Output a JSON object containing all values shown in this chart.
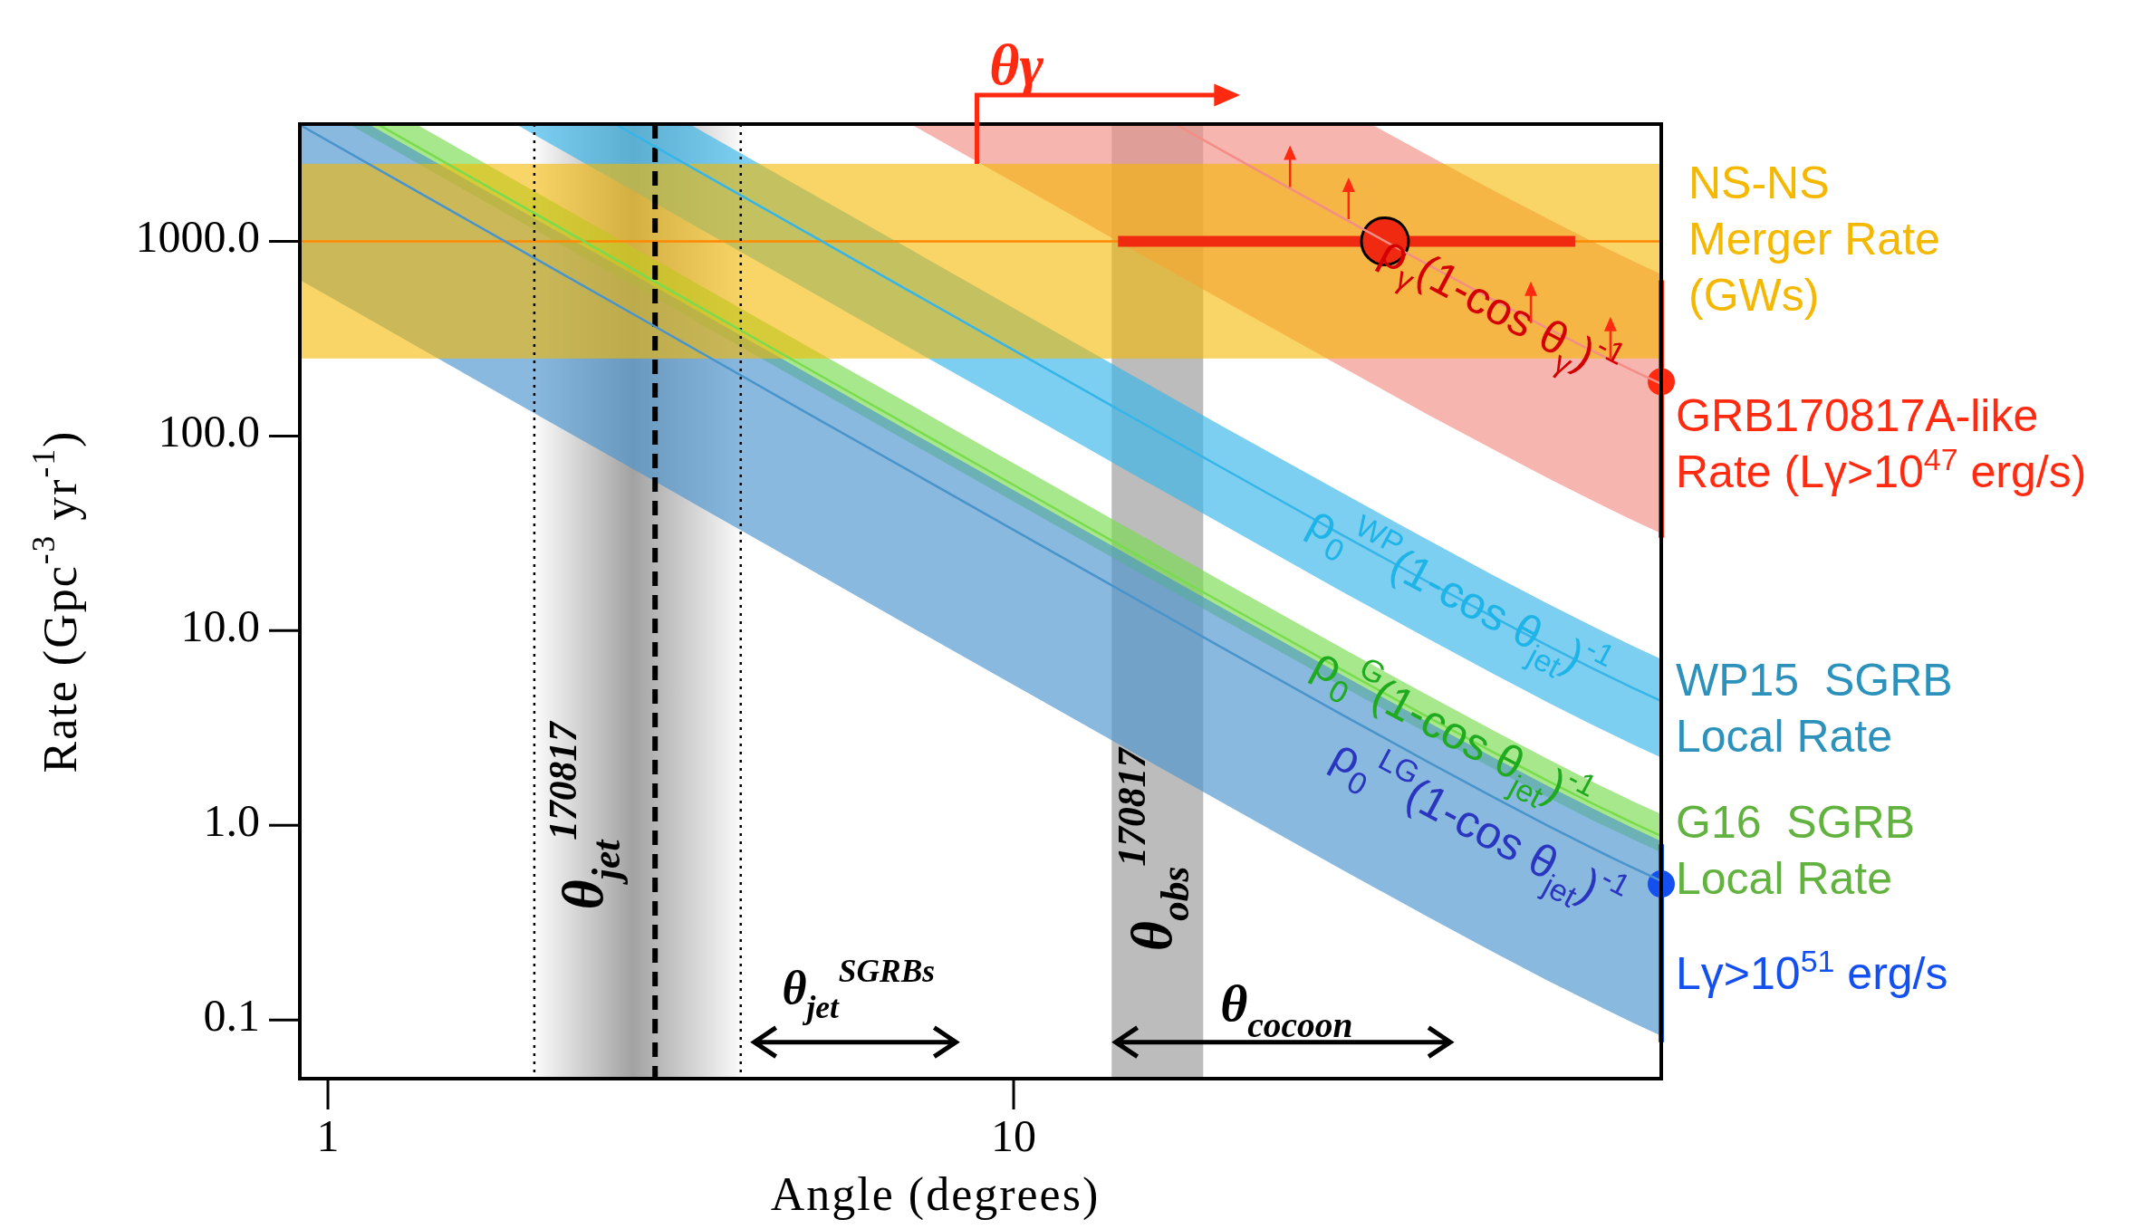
{
  "chart_data": {
    "type": "line",
    "log": "xy",
    "xlabel": "Angle (degrees)",
    "ylabel": "Rate (Gpc$^{-3}$ yr$^{-1}$)",
    "xlim": [
      0.91,
      88
    ],
    "ylim": [
      0.05,
      4000
    ],
    "xticks": [
      1,
      10
    ],
    "yticks": [
      {
        "value": 0.1,
        "label": "0.1"
      },
      {
        "value": 1,
        "label": "1.0"
      },
      {
        "value": 10,
        "label": "10.0"
      },
      {
        "value": 100,
        "label": "100.0"
      },
      {
        "value": 1000,
        "label": "1000.0"
      }
    ],
    "series": [
      {
        "color": "#f38d86",
        "x": [
          7.08,
          10,
          15,
          17.2,
          20,
          30,
          33.22,
          40,
          50,
          60,
          70,
          80,
          88
        ],
        "values": [
          null,
          null,
          null,
          4000,
          2968,
          1336,
          1095,
          765,
          501,
          358,
          272,
          217,
          185
        ],
        "lower": [
          4000,
          2008,
          895,
          682,
          506,
          228,
          187,
          130,
          85.4,
          61.0,
          46.4,
          36.9,
          31.6
        ],
        "upper": [
          4000,
          4000,
          4000,
          4000,
          4000,
          4000,
          4000,
          2795,
          1831,
          1308,
          994,
          791,
          678
        ]
      },
      {
        "name": "WP15  SGRB Local Rate",
        "color": "#36b5e8",
        "x": [
          1.879,
          2,
          2.626,
          3,
          3.365,
          5,
          7,
          10,
          15,
          20,
          30,
          40,
          50,
          60,
          70,
          80,
          88
        ],
        "values": [
          null,
          null,
          4000,
          3065,
          2435,
          1104,
          563,
          276,
          123,
          69.6,
          31.3,
          17.95,
          11.76,
          8.4,
          6.38,
          5.08,
          4.35
        ],
        "lower": [
          4000,
          3529,
          2047,
          1569,
          1247,
          565,
          288,
          142,
          63.1,
          35.7,
          16.0,
          9.19,
          6.02,
          4.3,
          3.27,
          2.6,
          2.23
        ],
        "upper": [
          4000,
          4000,
          4000,
          4000,
          4000,
          1813,
          926,
          454,
          202,
          114,
          51.5,
          29.5,
          19.3,
          13.8,
          10.5,
          8.35,
          7.15
        ]
      },
      {
        "name": "G16  SGRB Local Rate",
        "color": "#79dc4e",
        "x": [
          1.072,
          1.181,
          1.344,
          1.5,
          2,
          3,
          5,
          7,
          10,
          15,
          20,
          30,
          40,
          50,
          60,
          70,
          80,
          88
        ],
        "values": [
          null,
          4000,
          3090,
          2480,
          1395,
          620,
          223,
          114,
          56.0,
          24.9,
          14.1,
          6.34,
          3.63,
          2.38,
          1.7,
          1.29,
          1.03,
          0.881
        ],
        "lower": [
          4000,
          3295,
          2544,
          2043,
          1149,
          511,
          184,
          93.9,
          46.1,
          20.5,
          11.6,
          5.22,
          2.99,
          1.96,
          1.4,
          1.06,
          0.847,
          0.725
        ],
        "upper": [
          4000,
          4000,
          4000,
          3210,
          1806,
          803,
          289,
          148,
          72.4,
          32.3,
          18.2,
          8.21,
          4.7,
          3.08,
          2.2,
          1.67,
          1.33,
          1.14
        ]
      },
      {
        "color": "#4a94cc",
        "x": [
          0.91,
          1.146,
          1.5,
          2,
          3,
          5,
          7,
          10,
          15,
          20,
          30,
          40,
          50,
          60,
          70,
          80,
          88
        ],
        "values": [
          3964,
          2500,
          1459,
          821,
          365,
          131,
          67.1,
          32.9,
          14.7,
          8.29,
          3.73,
          2.14,
          1.4,
          1.0,
          0.76,
          0.605,
          0.518
        ],
        "lower": [
          634,
          400,
          233,
          131,
          58.4,
          21.0,
          10.7,
          5.27,
          2.35,
          1.33,
          0.597,
          0.342,
          0.224,
          0.16,
          0.122,
          0.0968,
          0.0829
        ],
        "upper": [
          4000,
          4000,
          2334,
          1313,
          584,
          210,
          107,
          52.7,
          23.5,
          13.3,
          5.97,
          3.42,
          2.24,
          1.6,
          1.22,
          0.968,
          0.829
        ]
      },
      {
        "type": "scatter",
        "marker": "circle",
        "color": "#f02a10",
        "x": [
          34.8
        ],
        "values": [
          1000
        ],
        "xerrors": [
          [
            14.2,
            65.9
          ]
        ]
      },
      {
        "type": "scatter",
        "marker": "circle",
        "name": "GRB170817A-like Rate (Lγ>10$^{47}$ erg/s)",
        "color": "#ff2a10",
        "x": [
          88
        ],
        "values": [
          190
        ],
        "errors": [
          [
            30,
            630
          ]
        ]
      },
      {
        "type": "scatter",
        "marker": "circle",
        "name": "Lγ>10$^{51}$ erg/s",
        "color": "#1450f0",
        "x": [
          88
        ],
        "values": [
          0.5
        ],
        "errors": [
          [
            0.077,
            0.8
          ]
        ]
      }
    ],
    "bands": [
      {
        "axis": "y",
        "from": 250,
        "to": 2500,
        "label": "NS-NS Merger Rate (GWs)",
        "color": "#f5b800"
      },
      {
        "axis": "x",
        "from": 2,
        "to": 4,
        "color": "#555555"
      },
      {
        "axis": "x",
        "from": 13.9,
        "to": 18.9,
        "color": "#b0b0b0"
      }
    ],
    "ref_lines": [
      {
        "axis": "y",
        "value": 1000,
        "color": "#ff8800",
        "line_style": "solid"
      },
      {
        "axis": "x",
        "value": 2,
        "color": "#000000",
        "line_style": "dotted"
      },
      {
        "axis": "x",
        "value": 3,
        "color": "#000000",
        "line_style": "dashed"
      },
      {
        "axis": "x",
        "value": 4,
        "color": "#000000",
        "line_style": "dotted"
      }
    ],
    "annotations": [
      "θγ",
      "ρ$_{γ}$(1-cos θ$_{γ}$)$^{-1}$",
      "ρ$_{0}$$^{WP}$(1-cos θ$_{jet}$)$^{-1}$",
      "ρ$_{0}$$^{G}$(1-cos θ$_{jet}$)$^{-1}$",
      "ρ$_{0}$$^{LG}$(1-cos θ$_{jet}$)$^{-1}$",
      "θ$_{jet}$$^{170817}$",
      "θ$_{obs}$$^{170817}$",
      "θ$_{jet}$$^{SGRBs}$",
      "θ$_{cocoon}$"
    ]
  }
}
